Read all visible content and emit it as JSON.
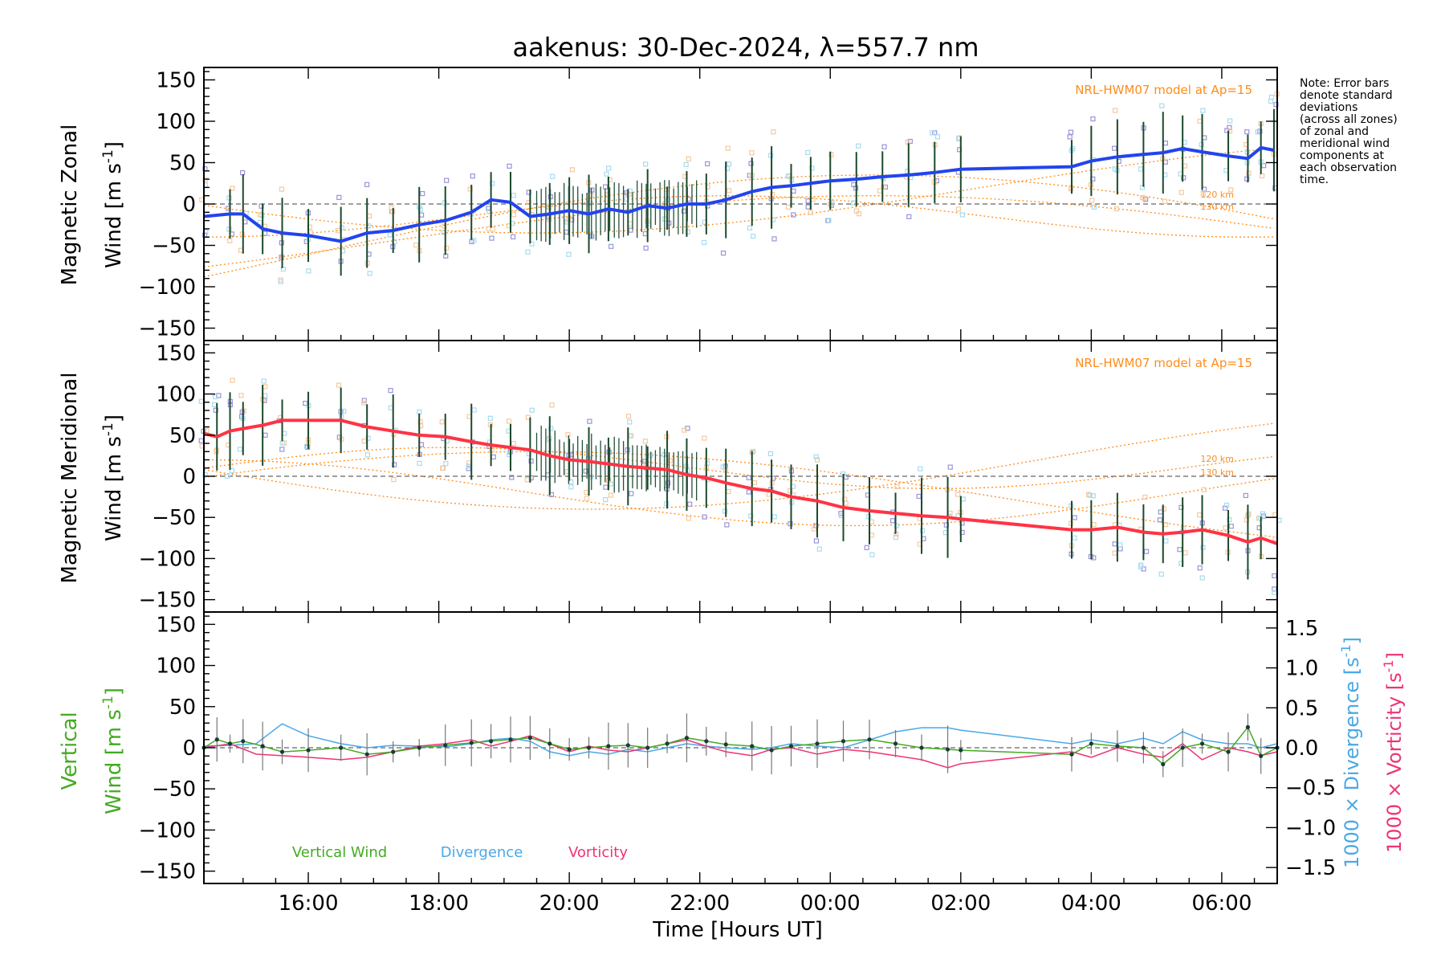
{
  "title": "aakenus: 30-Dec-2024, λ=557.7 nm",
  "note": [
    "Note: Error bars",
    "denote standard",
    "deviations",
    "(across all zones)",
    "of zonal and",
    "meridional wind",
    "components at",
    "each observation",
    "time."
  ],
  "colors": {
    "zonal": "#2244ee",
    "zonal_light": "#4aa8e6",
    "meridional": "#ff3344",
    "vertical": "#44aa22",
    "divergence": "#4aa8e6",
    "vorticity": "#ee3377",
    "model": "#ff8c1a",
    "scatter": "#9a94d8"
  },
  "chart_data": [
    {
      "type": "line",
      "panel": "zonal",
      "ylabel": [
        "Magnetic Zonal",
        "Wind [m s",
        "-1",
        "]"
      ],
      "yticks": [
        150,
        100,
        50,
        0,
        -50,
        -100,
        -150
      ],
      "ylim": [
        -165,
        165
      ],
      "xlim": [
        14.4,
        30.85
      ],
      "model_label": "NRL-HWM07 model at Ap=15",
      "model_alt_labels": [
        "120 km",
        "130 km"
      ],
      "series": [
        {
          "values_x": [
            14.4,
            14.8,
            15.0,
            15.3,
            15.6,
            16.0,
            16.5,
            16.9,
            17.3,
            17.7,
            18.1,
            18.5,
            18.8,
            19.1,
            19.4,
            19.7,
            20.0,
            20.3,
            20.6,
            20.9,
            21.2,
            21.5,
            21.8,
            22.1,
            22.4,
            22.8,
            23.1,
            23.4,
            23.7,
            24.0,
            24.4,
            24.8,
            25.2,
            25.6,
            26.0,
            27.7,
            28.0,
            28.4,
            28.8,
            29.1,
            29.4,
            29.7,
            30.1,
            30.4,
            30.6,
            30.8
          ],
          "values_y": [
            -15,
            -12,
            -12,
            -30,
            -35,
            -38,
            -45,
            -35,
            -32,
            -25,
            -20,
            -10,
            5,
            2,
            -15,
            -12,
            -8,
            -12,
            -6,
            -10,
            -2,
            -5,
            0,
            0,
            5,
            15,
            20,
            22,
            25,
            28,
            30,
            33,
            35,
            38,
            42,
            45,
            52,
            57,
            60,
            62,
            67,
            63,
            58,
            55,
            68,
            65
          ]
        }
      ]
    },
    {
      "type": "line",
      "panel": "meridional",
      "ylabel": [
        "Magnetic Meridional",
        "Wind [m s",
        "-1",
        "]"
      ],
      "yticks": [
        150,
        100,
        50,
        0,
        -50,
        -100,
        -150
      ],
      "ylim": [
        -165,
        165
      ],
      "xlim": [
        14.4,
        30.85
      ],
      "model_label": "NRL-HWM07 model at Ap=15",
      "model_alt_labels": [
        "120 km",
        "130 km"
      ],
      "series": [
        {
          "values_x": [
            14.4,
            14.6,
            14.8,
            15.0,
            15.3,
            15.6,
            16.0,
            16.5,
            16.9,
            17.3,
            17.7,
            18.1,
            18.5,
            18.8,
            19.1,
            19.4,
            19.7,
            20.0,
            20.3,
            20.6,
            20.9,
            21.2,
            21.5,
            21.8,
            22.1,
            22.4,
            22.8,
            23.1,
            23.4,
            23.8,
            24.2,
            24.6,
            25.0,
            25.4,
            25.8,
            26.0,
            27.7,
            28.0,
            28.4,
            28.8,
            29.1,
            29.4,
            29.7,
            30.1,
            30.4,
            30.6,
            30.85
          ],
          "values_y": [
            52,
            48,
            55,
            58,
            62,
            68,
            68,
            68,
            60,
            55,
            50,
            48,
            42,
            38,
            35,
            32,
            25,
            20,
            18,
            15,
            12,
            10,
            8,
            2,
            -2,
            -8,
            -15,
            -18,
            -25,
            -30,
            -38,
            -42,
            -45,
            -48,
            -50,
            -52,
            -65,
            -65,
            -62,
            -68,
            -70,
            -68,
            -65,
            -72,
            -80,
            -75,
            -82
          ]
        }
      ]
    },
    {
      "type": "line",
      "panel": "vertical",
      "ylabel": [
        "Vertical",
        "Wind [m s",
        "-1",
        "]"
      ],
      "yticks": [
        150,
        100,
        50,
        0,
        -50,
        -100,
        -150
      ],
      "ylim": [
        -165,
        165
      ],
      "xlim": [
        14.4,
        30.85
      ],
      "right_axis": {
        "ticks": [
          1.5,
          1.0,
          0.5,
          0.0,
          -0.5,
          -1.0,
          -1.5
        ],
        "labels": [
          "1.5",
          "1.0",
          "0.5",
          "0.0",
          "−0.5",
          "−1.0",
          "−1.5"
        ],
        "label_div": [
          "1000 × Divergence [s",
          "-1",
          "]"
        ],
        "label_vort": [
          "1000 × Vorticity [s",
          "-1",
          "]"
        ]
      },
      "legend": [
        "Vertical Wind",
        "Divergence",
        "Vorticity"
      ],
      "series": [
        {
          "name": "Vertical Wind",
          "values_x": [
            14.4,
            14.6,
            14.8,
            15.0,
            15.3,
            15.6,
            16.0,
            16.5,
            16.9,
            17.3,
            17.7,
            18.1,
            18.5,
            18.8,
            19.1,
            19.4,
            19.7,
            20.0,
            20.3,
            20.6,
            20.9,
            21.2,
            21.5,
            21.8,
            22.1,
            22.4,
            22.8,
            23.1,
            23.4,
            23.8,
            24.2,
            24.6,
            25.0,
            25.4,
            25.8,
            26.0,
            27.7,
            28.0,
            28.4,
            28.8,
            29.1,
            29.4,
            29.7,
            30.1,
            30.4,
            30.6,
            30.85
          ],
          "values_y": [
            0,
            10,
            5,
            8,
            2,
            -5,
            -3,
            0,
            -8,
            -5,
            0,
            3,
            6,
            8,
            10,
            12,
            5,
            -2,
            0,
            2,
            3,
            0,
            5,
            12,
            8,
            4,
            2,
            -3,
            2,
            5,
            8,
            10,
            5,
            0,
            -2,
            -3,
            -8,
            5,
            2,
            0,
            -20,
            0,
            5,
            -5,
            25,
            -10,
            0
          ]
        },
        {
          "name": "Divergence",
          "values_x": [
            14.4,
            14.8,
            15.2,
            15.6,
            16.0,
            16.5,
            16.9,
            17.3,
            17.7,
            18.1,
            18.5,
            18.8,
            19.1,
            19.4,
            19.7,
            20.0,
            20.3,
            20.6,
            20.9,
            21.2,
            21.5,
            21.8,
            22.1,
            22.4,
            22.8,
            23.1,
            23.4,
            23.8,
            24.2,
            24.6,
            25.0,
            25.4,
            25.8,
            26.0,
            27.7,
            28.0,
            28.4,
            28.8,
            29.1,
            29.4,
            29.7,
            30.1,
            30.4,
            30.6,
            30.85
          ],
          "values_y": [
            0.02,
            0.03,
            0.05,
            0.3,
            0.15,
            0.05,
            0.0,
            0.03,
            0.02,
            0.01,
            0.05,
            0.1,
            0.12,
            0.08,
            -0.05,
            -0.1,
            -0.05,
            -0.08,
            -0.02,
            -0.05,
            0.0,
            0.05,
            0.02,
            0.0,
            -0.02,
            0.0,
            0.05,
            0.02,
            0.0,
            0.1,
            0.2,
            0.25,
            0.25,
            0.22,
            0.05,
            0.1,
            0.05,
            0.12,
            0.05,
            0.2,
            0.1,
            0.05,
            0.05,
            0.0,
            0.05
          ]
        },
        {
          "name": "Vorticity",
          "values_x": [
            14.4,
            14.8,
            15.2,
            15.6,
            16.0,
            16.5,
            16.9,
            17.3,
            17.7,
            18.1,
            18.5,
            18.8,
            19.1,
            19.4,
            19.7,
            20.0,
            20.3,
            20.6,
            20.9,
            21.2,
            21.5,
            21.8,
            22.1,
            22.4,
            22.8,
            23.1,
            23.4,
            23.8,
            24.2,
            24.6,
            25.0,
            25.4,
            25.8,
            26.0,
            27.7,
            28.0,
            28.4,
            28.8,
            29.1,
            29.4,
            29.7,
            30.1,
            30.4,
            30.6,
            30.85
          ],
          "values_y": [
            0.0,
            0.05,
            -0.08,
            -0.1,
            -0.12,
            -0.15,
            -0.12,
            -0.05,
            0.02,
            0.05,
            0.1,
            0.02,
            0.08,
            0.15,
            0.05,
            -0.05,
            0.02,
            -0.03,
            -0.05,
            0.0,
            0.05,
            0.1,
            0.02,
            -0.05,
            -0.1,
            -0.02,
            0.0,
            -0.08,
            -0.02,
            -0.05,
            -0.1,
            -0.15,
            -0.25,
            -0.2,
            -0.05,
            -0.12,
            0.0,
            -0.08,
            -0.12,
            0.05,
            -0.15,
            0.0,
            -0.05,
            -0.1,
            -0.05
          ]
        }
      ]
    }
  ],
  "xaxis": {
    "label": "Time [Hours UT]",
    "ticks": [
      16,
      18,
      20,
      22,
      24,
      26,
      28,
      30
    ],
    "tick_labels": [
      "16:00",
      "18:00",
      "20:00",
      "22:00",
      "00:00",
      "02:00",
      "04:00",
      "06:00"
    ]
  }
}
